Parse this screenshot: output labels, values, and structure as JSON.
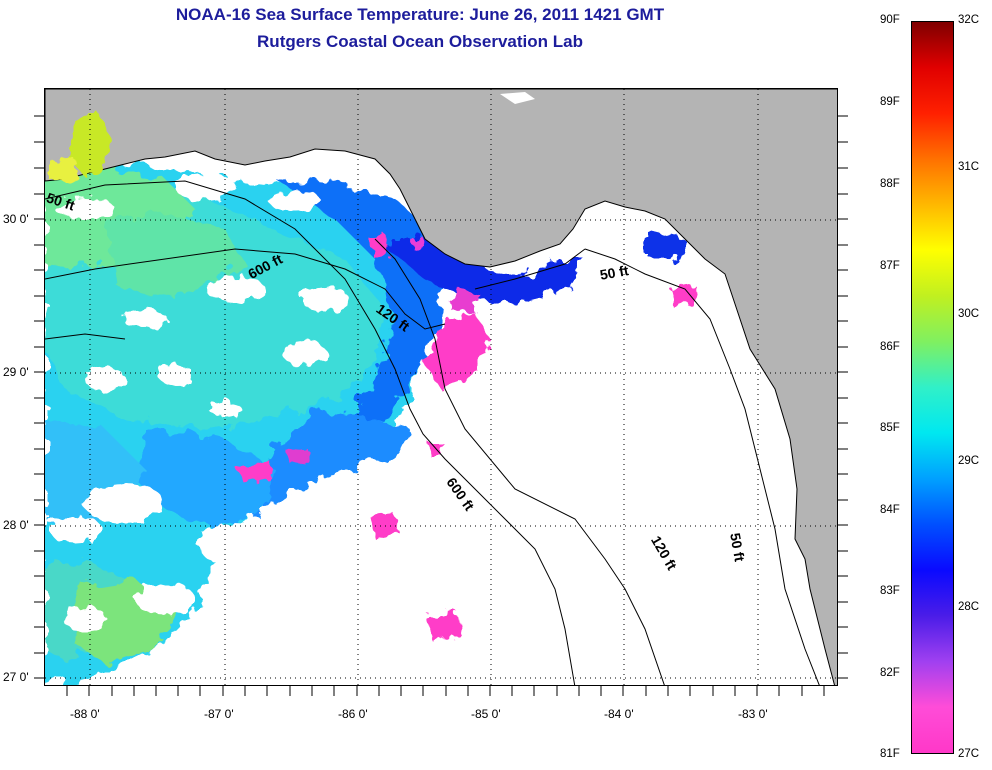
{
  "title": {
    "line1": "NOAA-16 Sea Surface Temperature:  June 26, 2011 1421 GMT",
    "line2": "Rutgers Coastal Ocean Observation Lab"
  },
  "map": {
    "lon_range": [
      -88.35,
      -82.5
    ],
    "lat_range": [
      27.0,
      30.85
    ],
    "x_ticks": [
      "-88 0'",
      "-87 0'",
      "-86 0'",
      "-85 0'",
      "-84 0'",
      "-83 0'"
    ],
    "y_ticks": [
      "30 0'",
      "29 0'",
      "28 0'",
      "27 0'"
    ],
    "grid": "dotted",
    "land_color": "#b4b4b4",
    "cloud_color": "#ffffff",
    "contour_labels": [
      "50 ft",
      "600 ft",
      "120 ft",
      "50 ft",
      "600 ft",
      "120 ft",
      "50 ft"
    ]
  },
  "colorbar": {
    "fahrenheit_labels": [
      "90F",
      "89F",
      "88F",
      "87F",
      "86F",
      "85F",
      "84F",
      "83F",
      "82F",
      "81F"
    ],
    "celsius_labels": [
      "32C",
      "31C",
      "30C",
      "29C",
      "28C",
      "27C"
    ],
    "range_f": [
      81,
      90
    ],
    "range_c": [
      27.2,
      32.2
    ],
    "colors": [
      "#ff38c8",
      "#ff4cd8",
      "#a040f0",
      "#4a1ce8",
      "#0a0aff",
      "#0050ff",
      "#00a0ff",
      "#00e8f0",
      "#30f0c8",
      "#80f060",
      "#c0f020",
      "#ffff00",
      "#ffb800",
      "#ff7000",
      "#ff2000",
      "#e00000",
      "#800000"
    ]
  }
}
